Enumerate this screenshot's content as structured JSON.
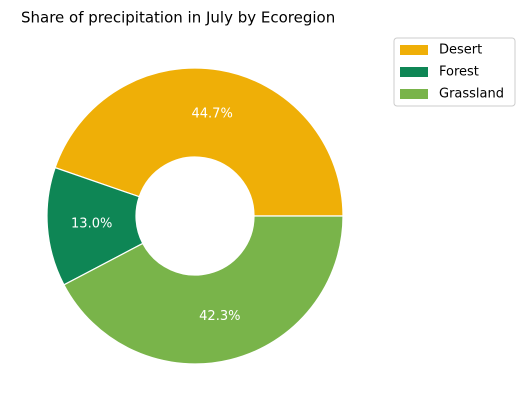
{
  "chart_data": {
    "type": "donut",
    "title": "Share of precipitation in July by Ecoregion",
    "categories": [
      "Desert",
      "Forest",
      "Grassland"
    ],
    "values": [
      44.7,
      13.0,
      42.3
    ],
    "value_labels": [
      "44.7%",
      "13.0%",
      "42.3%"
    ],
    "colors": [
      "#efaf07",
      "#0e8655",
      "#79b44a"
    ],
    "legend": "upper right"
  }
}
